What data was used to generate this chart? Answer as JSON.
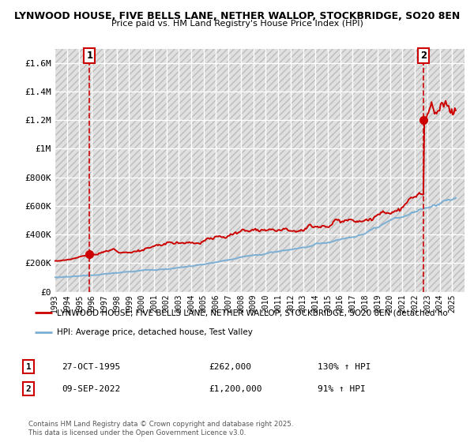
{
  "title_line1": "LYNWOOD HOUSE, FIVE BELLS LANE, NETHER WALLOP, STOCKBRIDGE, SO20 8EN",
  "title_line2": "Price paid vs. HM Land Registry's House Price Index (HPI)",
  "background_color": "#ffffff",
  "hatch_bg_color": "#e0e0e0",
  "hatch_line_color": "#cccccc",
  "grid_color": "#ffffff",
  "red_color": "#cc0000",
  "blue_color": "#7bafd4",
  "sale1_year": 1995.82,
  "sale1_price": 262000,
  "sale2_year": 2022.69,
  "sale2_price": 1200000,
  "xmin": 1993,
  "xmax": 2026,
  "ymin": 0,
  "ymax": 1700000,
  "yticks": [
    0,
    200000,
    400000,
    600000,
    800000,
    1000000,
    1200000,
    1400000,
    1600000
  ],
  "ytick_labels": [
    "£0",
    "£200K",
    "£400K",
    "£600K",
    "£800K",
    "£1M",
    "£1.2M",
    "£1.4M",
    "£1.6M"
  ],
  "xtick_years": [
    1993,
    1994,
    1995,
    1996,
    1997,
    1998,
    1999,
    2000,
    2001,
    2002,
    2003,
    2004,
    2005,
    2006,
    2007,
    2008,
    2009,
    2010,
    2011,
    2012,
    2013,
    2014,
    2015,
    2016,
    2017,
    2018,
    2019,
    2020,
    2021,
    2022,
    2023,
    2024,
    2025
  ],
  "legend_red_label": "LYNWOOD HOUSE, FIVE BELLS LANE, NETHER WALLOP, STOCKBRIDGE, SO20 8EN (detached ho",
  "legend_blue_label": "HPI: Average price, detached house, Test Valley",
  "annotation1_label": "1",
  "annotation2_label": "2",
  "note1_num": "1",
  "note1_date": "27-OCT-1995",
  "note1_price": "£262,000",
  "note1_hpi": "130% ↑ HPI",
  "note2_num": "2",
  "note2_date": "09-SEP-2022",
  "note2_price": "£1,200,000",
  "note2_hpi": "91% ↑ HPI",
  "copyright_text": "Contains HM Land Registry data © Crown copyright and database right 2025.\nThis data is licensed under the Open Government Licence v3.0."
}
